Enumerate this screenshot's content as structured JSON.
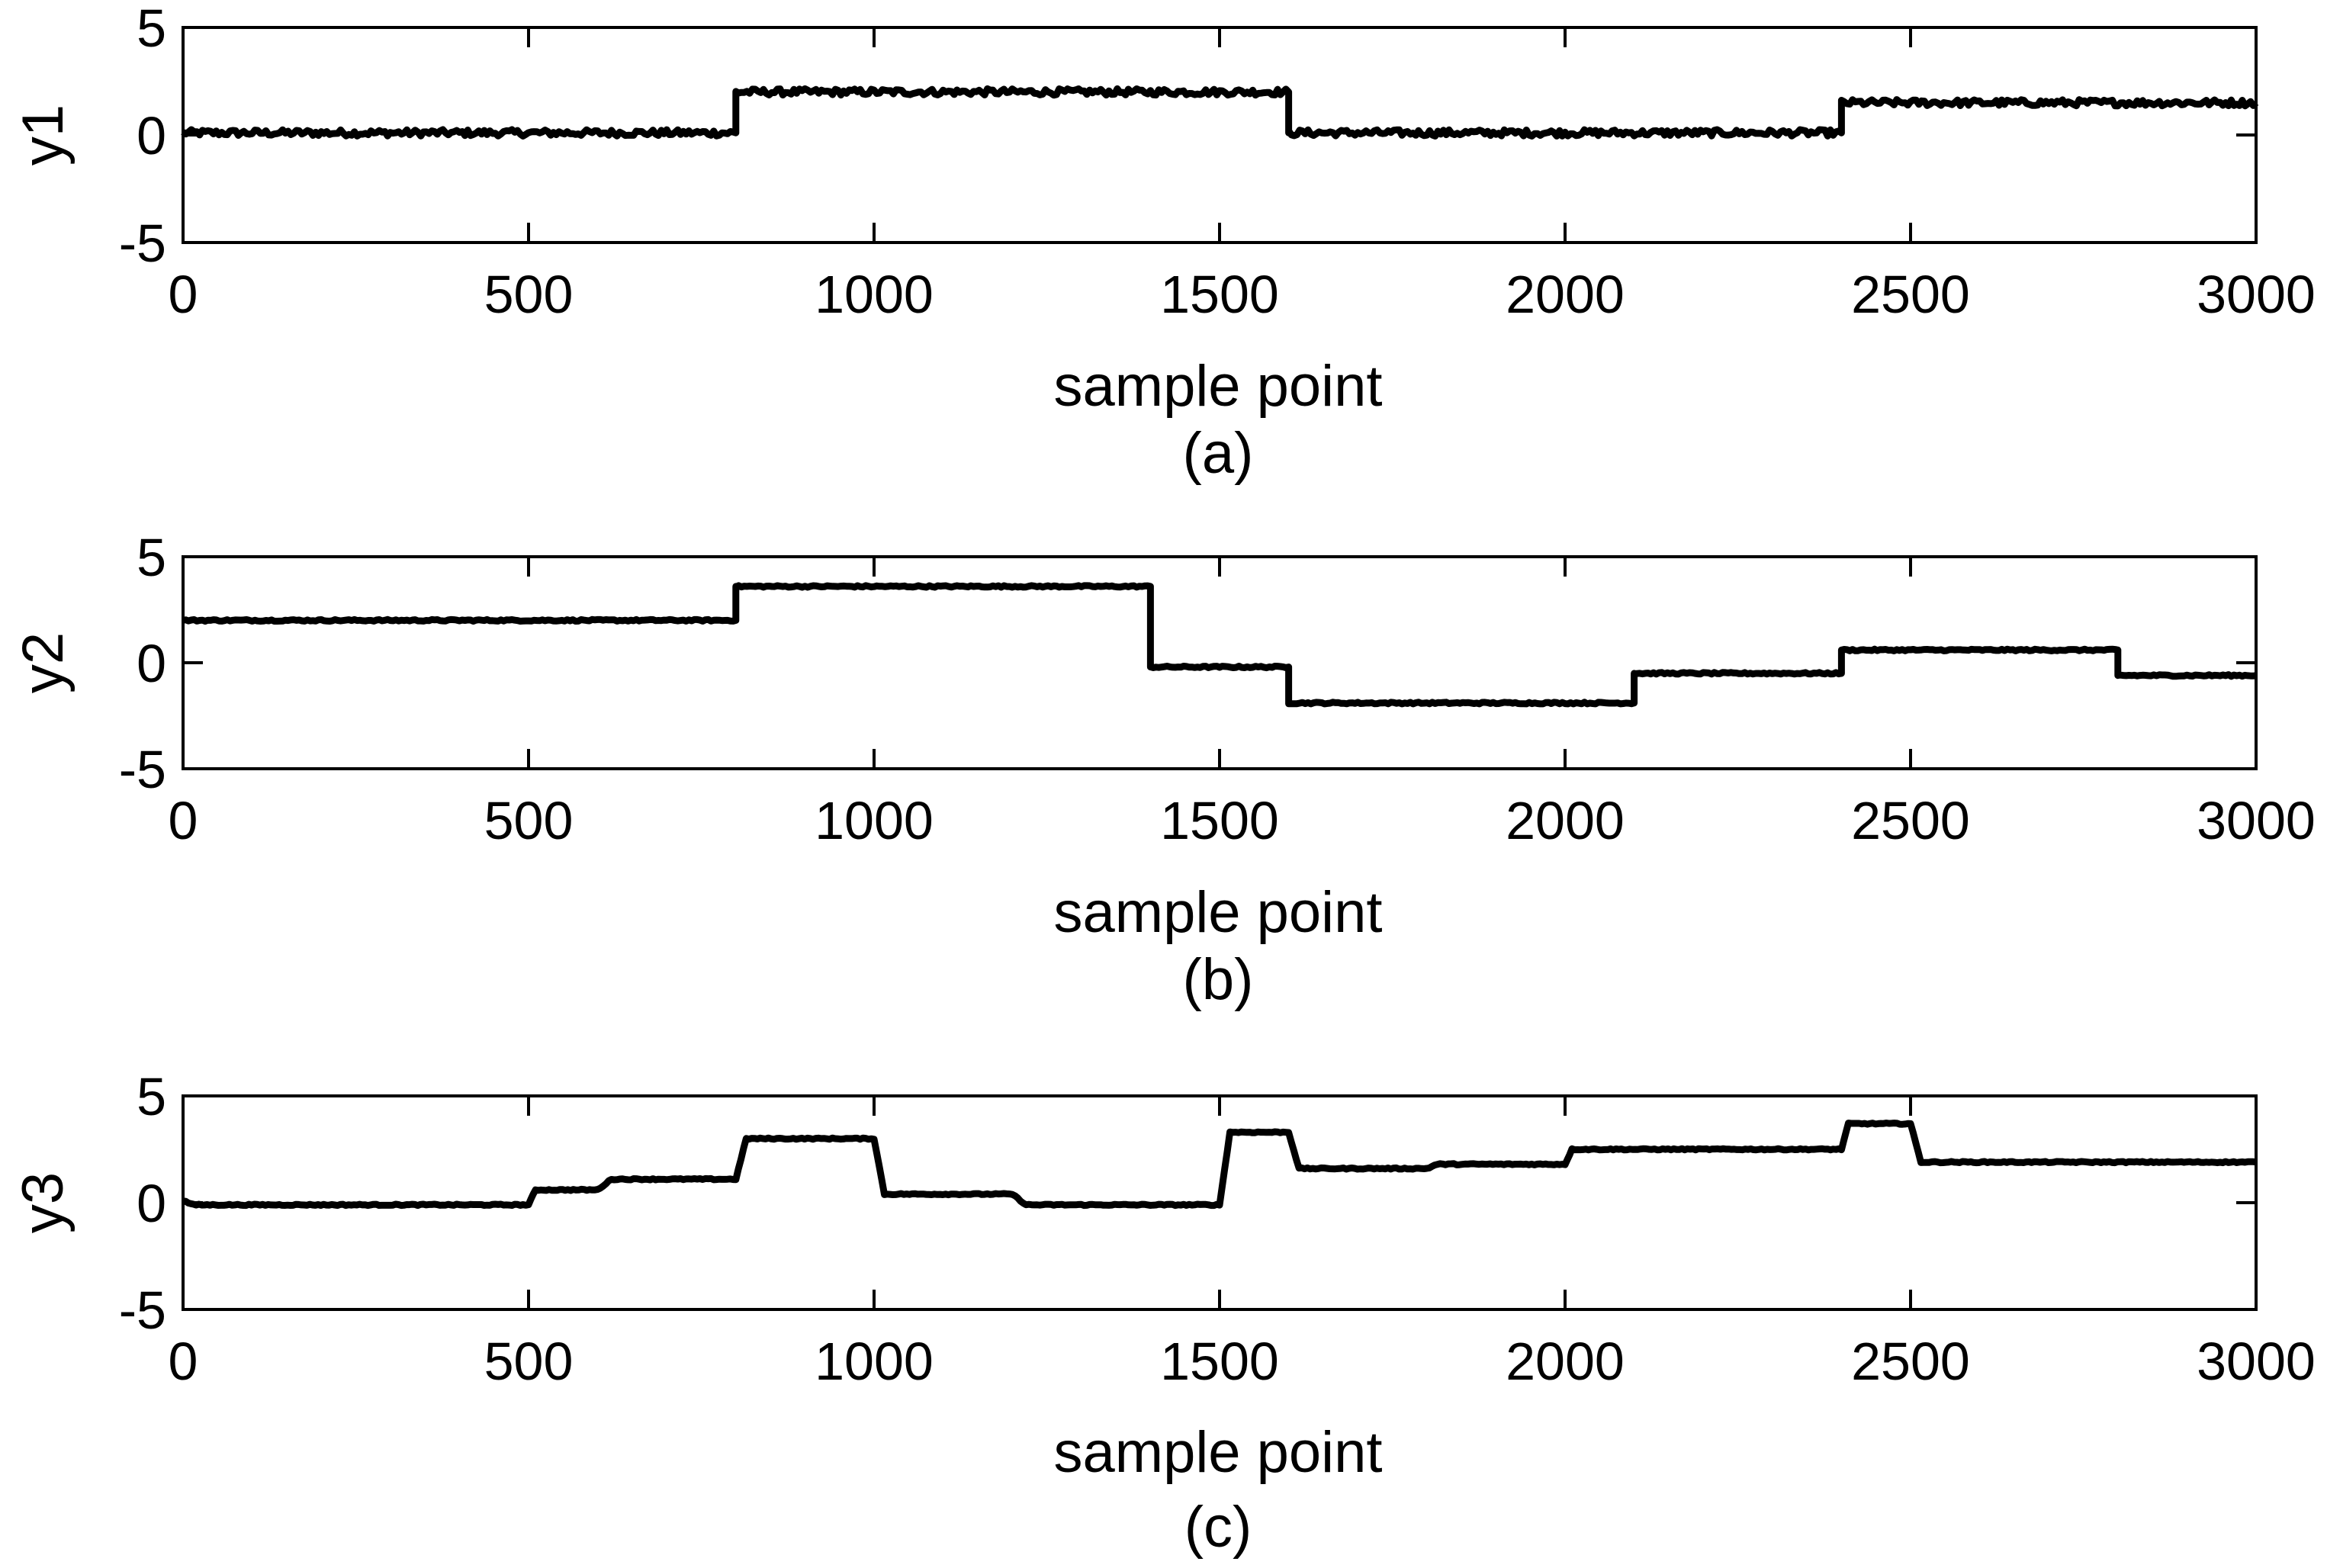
{
  "chart_data": [
    {
      "type": "line",
      "panel": "a",
      "caption": "(a)",
      "xlabel": "sample point",
      "ylabel": "y1",
      "xlim": [
        0,
        3000
      ],
      "ylim": [
        -5,
        5
      ],
      "xticks": [
        0,
        500,
        1000,
        1500,
        2000,
        2500,
        3000
      ],
      "yticks": [
        5,
        0,
        -5
      ],
      "grid": false,
      "color": "#000000",
      "noise": 0.15,
      "series": [
        {
          "x": [
            0,
            800,
            800,
            1600,
            1600,
            2400,
            2400,
            3000
          ],
          "y": [
            0.1,
            0.1,
            2.0,
            2.0,
            0.1,
            0.1,
            1.5,
            1.5
          ]
        }
      ]
    },
    {
      "type": "line",
      "panel": "b",
      "caption": "(b)",
      "xlabel": "sample point",
      "ylabel": "y2",
      "xlim": [
        0,
        3000
      ],
      "ylim": [
        -5,
        5
      ],
      "xticks": [
        0,
        500,
        1000,
        1500,
        2000,
        2500,
        3000
      ],
      "yticks": [
        5,
        0,
        -5
      ],
      "grid": false,
      "color": "#000000",
      "noise": 0.04,
      "series": [
        {
          "x": [
            0,
            800,
            800,
            1400,
            1400,
            1600,
            1600,
            2100,
            2100,
            2400,
            2400,
            2800,
            2800,
            3000
          ],
          "y": [
            2.0,
            2.0,
            3.6,
            3.6,
            -0.2,
            -0.2,
            -1.9,
            -1.9,
            -0.5,
            -0.5,
            0.6,
            0.6,
            -0.6,
            -0.6
          ]
        }
      ]
    },
    {
      "type": "line",
      "panel": "c",
      "caption": "(c)",
      "xlabel": "sample point",
      "ylabel": "y3",
      "xlim": [
        0,
        3000
      ],
      "ylim": [
        -5,
        5
      ],
      "xticks": [
        0,
        500,
        1000,
        1500,
        2000,
        2500,
        3000
      ],
      "yticks": [
        5,
        0,
        -5
      ],
      "grid": false,
      "color": "#000000",
      "noise": 0.03,
      "series": [
        {
          "x": [
            0,
            15,
            500,
            510,
            600,
            620,
            800,
            815,
            1000,
            1015,
            1200,
            1220,
            1500,
            1515,
            1600,
            1615,
            1800,
            1815,
            2000,
            2010,
            2400,
            2410,
            2500,
            2515,
            3000
          ],
          "y": [
            0.1,
            -0.1,
            -0.1,
            0.6,
            0.6,
            1.1,
            1.1,
            3.0,
            3.0,
            0.4,
            0.4,
            -0.1,
            -0.1,
            3.3,
            3.3,
            1.6,
            1.6,
            1.8,
            1.8,
            2.5,
            2.5,
            3.7,
            3.7,
            1.9,
            1.9
          ]
        }
      ]
    }
  ]
}
